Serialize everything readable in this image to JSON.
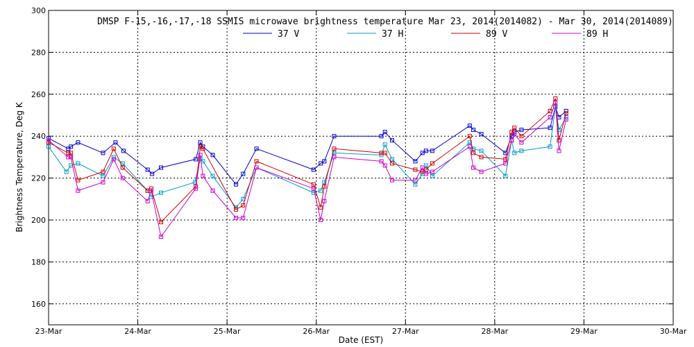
{
  "chart_data": {
    "type": "line",
    "title": "DMSP F-15,-16,-17,-18 SSMIS microwave brightness temperature Mar 23, 2014(2014082) - Mar 30, 2014(2014089)",
    "xlabel": "Date (EST)",
    "ylabel": "Brightness Temperature, Deg K",
    "xlim": [
      0,
      7
    ],
    "ylim": [
      150,
      300
    ],
    "x_tick_values": [
      0,
      1,
      2,
      3,
      4,
      5,
      6,
      7
    ],
    "x_tick_labels": [
      "23-Mar",
      "24-Mar",
      "25-Mar",
      "26-Mar",
      "27-Mar",
      "28-Mar",
      "29-Mar",
      "30-Mar"
    ],
    "y_ticks": [
      160,
      180,
      200,
      220,
      240,
      260,
      280,
      300
    ],
    "grid": true,
    "legend_position": "top-center",
    "series": [
      {
        "name": "37 V",
        "color": "#0000cc",
        "points": [
          [
            0.0,
            239
          ],
          [
            0.22,
            234
          ],
          [
            0.25,
            235
          ],
          [
            0.33,
            237
          ],
          [
            0.61,
            232
          ],
          [
            0.75,
            237
          ],
          [
            0.84,
            233
          ],
          [
            1.11,
            224
          ],
          [
            1.16,
            222
          ],
          [
            1.26,
            225
          ],
          [
            1.65,
            229
          ],
          [
            1.7,
            237
          ],
          [
            1.73,
            235
          ],
          [
            1.84,
            231
          ],
          [
            2.1,
            217
          ],
          [
            2.18,
            222
          ],
          [
            2.33,
            234
          ],
          [
            2.97,
            224
          ],
          [
            3.05,
            227
          ],
          [
            3.09,
            228
          ],
          [
            3.2,
            240
          ],
          [
            3.73,
            240
          ],
          [
            3.77,
            242
          ],
          [
            3.85,
            238
          ],
          [
            4.11,
            228
          ],
          [
            4.19,
            232
          ],
          [
            4.23,
            233
          ],
          [
            4.3,
            233
          ],
          [
            4.72,
            245
          ],
          [
            4.76,
            243
          ],
          [
            4.85,
            241
          ],
          [
            5.12,
            232
          ],
          [
            5.19,
            240
          ],
          [
            5.22,
            242
          ],
          [
            5.3,
            243
          ],
          [
            5.62,
            244
          ],
          [
            5.68,
            254
          ],
          [
            5.72,
            249
          ],
          [
            5.8,
            252
          ]
        ]
      },
      {
        "name": "37 H",
        "color": "#0099cc",
        "points": [
          [
            0.0,
            235
          ],
          [
            0.2,
            223
          ],
          [
            0.25,
            226
          ],
          [
            0.33,
            227
          ],
          [
            0.61,
            221
          ],
          [
            0.73,
            230
          ],
          [
            0.83,
            227
          ],
          [
            1.11,
            214
          ],
          [
            1.15,
            211
          ],
          [
            1.26,
            213
          ],
          [
            1.64,
            218
          ],
          [
            1.7,
            229
          ],
          [
            1.73,
            228
          ],
          [
            1.84,
            221
          ],
          [
            2.1,
            206
          ],
          [
            2.18,
            210
          ],
          [
            2.33,
            225
          ],
          [
            2.97,
            213
          ],
          [
            3.05,
            214
          ],
          [
            3.09,
            218
          ],
          [
            3.2,
            232
          ],
          [
            3.73,
            231
          ],
          [
            3.77,
            236
          ],
          [
            3.85,
            229
          ],
          [
            4.11,
            217
          ],
          [
            4.19,
            222
          ],
          [
            4.23,
            226
          ],
          [
            4.3,
            221
          ],
          [
            4.72,
            237
          ],
          [
            4.76,
            234
          ],
          [
            4.85,
            233
          ],
          [
            5.12,
            221
          ],
          [
            5.19,
            238
          ],
          [
            5.22,
            232
          ],
          [
            5.3,
            233
          ],
          [
            5.62,
            235
          ],
          [
            5.68,
            254
          ],
          [
            5.72,
            243
          ],
          [
            5.8,
            249
          ]
        ]
      },
      {
        "name": "89 V",
        "color": "#cc0000",
        "points": [
          [
            0.0,
            237
          ],
          [
            0.22,
            232
          ],
          [
            0.25,
            232
          ],
          [
            0.33,
            219
          ],
          [
            0.61,
            223
          ],
          [
            0.73,
            234
          ],
          [
            0.83,
            225
          ],
          [
            1.11,
            214
          ],
          [
            1.15,
            215
          ],
          [
            1.26,
            199
          ],
          [
            1.65,
            216
          ],
          [
            1.7,
            235
          ],
          [
            1.73,
            234
          ],
          [
            2.1,
            205
          ],
          [
            2.18,
            207
          ],
          [
            2.33,
            228
          ],
          [
            2.97,
            217
          ],
          [
            3.05,
            206
          ],
          [
            3.09,
            216
          ],
          [
            3.2,
            234
          ],
          [
            3.73,
            232
          ],
          [
            3.77,
            232
          ],
          [
            3.85,
            227
          ],
          [
            4.11,
            224
          ],
          [
            4.19,
            223
          ],
          [
            4.23,
            224
          ],
          [
            4.3,
            227
          ],
          [
            4.72,
            240
          ],
          [
            4.76,
            232
          ],
          [
            4.85,
            230
          ],
          [
            5.12,
            229
          ],
          [
            5.19,
            242
          ],
          [
            5.22,
            244
          ],
          [
            5.3,
            240
          ],
          [
            5.62,
            252
          ],
          [
            5.68,
            258
          ],
          [
            5.72,
            238
          ],
          [
            5.8,
            251
          ]
        ]
      },
      {
        "name": "89 H",
        "color": "#cc00cc",
        "points": [
          [
            0.0,
            238
          ],
          [
            0.22,
            230
          ],
          [
            0.25,
            230
          ],
          [
            0.33,
            214
          ],
          [
            0.61,
            218
          ],
          [
            0.73,
            229
          ],
          [
            0.83,
            220
          ],
          [
            1.11,
            209
          ],
          [
            1.15,
            214
          ],
          [
            1.26,
            192
          ],
          [
            1.65,
            215
          ],
          [
            1.7,
            231
          ],
          [
            1.73,
            221
          ],
          [
            1.84,
            214
          ],
          [
            2.1,
            201
          ],
          [
            2.18,
            201
          ],
          [
            2.33,
            225
          ],
          [
            2.97,
            215
          ],
          [
            3.05,
            200
          ],
          [
            3.09,
            209
          ],
          [
            3.2,
            230
          ],
          [
            3.73,
            228
          ],
          [
            3.77,
            226
          ],
          [
            3.85,
            219
          ],
          [
            4.11,
            219
          ],
          [
            4.19,
            225
          ],
          [
            4.23,
            222
          ],
          [
            4.3,
            223
          ],
          [
            4.72,
            235
          ],
          [
            4.76,
            225
          ],
          [
            4.85,
            223
          ],
          [
            5.12,
            227
          ],
          [
            5.19,
            238
          ],
          [
            5.22,
            241
          ],
          [
            5.3,
            237
          ],
          [
            5.62,
            249
          ],
          [
            5.68,
            256
          ],
          [
            5.72,
            233
          ],
          [
            5.8,
            248
          ]
        ]
      }
    ]
  }
}
